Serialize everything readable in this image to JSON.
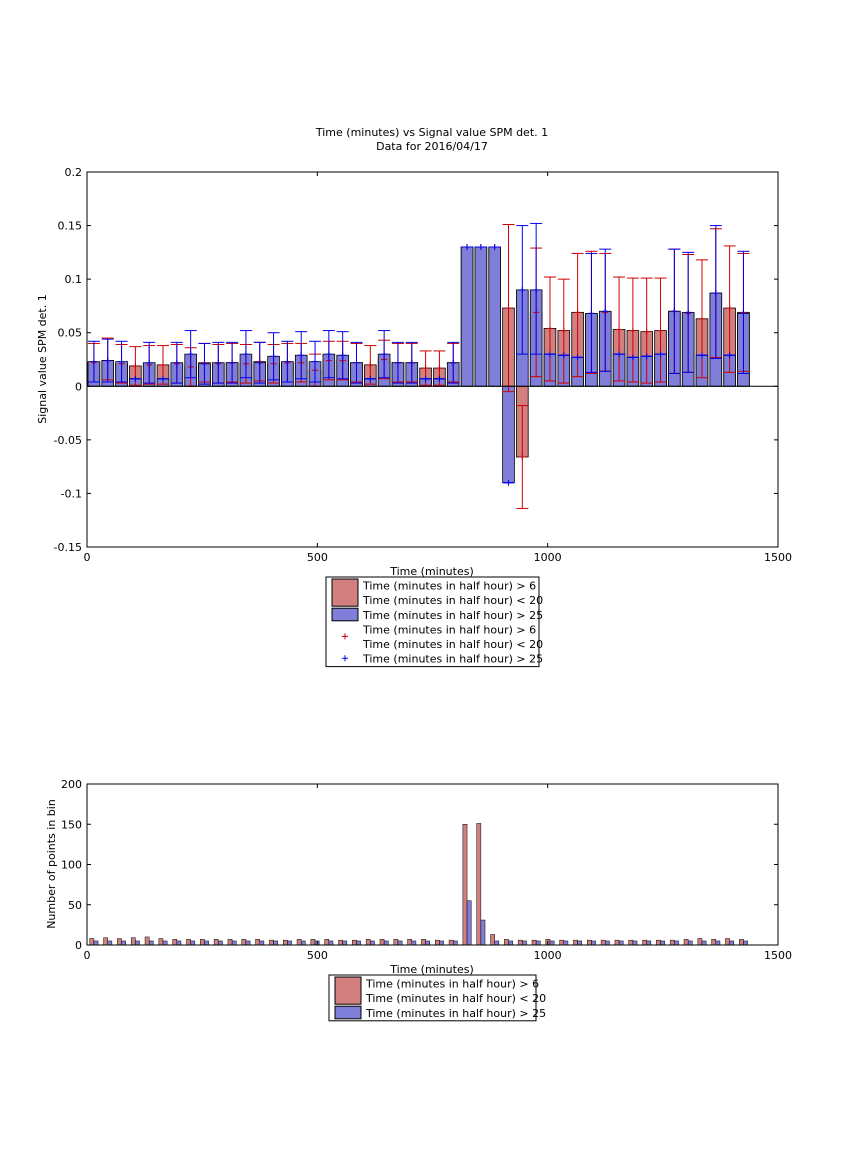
{
  "colors": {
    "red_fill": "#d17f7f",
    "red_line": "#cc0000",
    "blue_fill": "#7f7fd9",
    "blue_line": "#0000ee"
  },
  "chart_data": [
    {
      "type": "bar",
      "title": "Time (minutes) vs Signal value SPM det. 1",
      "subtitle": "Data for 2016/04/17",
      "xlabel": "Time (minutes)",
      "ylabel": "Signal value SPM det. 1",
      "xlim": [
        0,
        1500
      ],
      "ylim": [
        -0.15,
        0.2
      ],
      "xticks": [
        "0",
        "500",
        "1000",
        "1500"
      ],
      "yticks": [
        "-0.15",
        "-0.1",
        "-0.05",
        "0",
        "0.05",
        "0.1",
        "0.15",
        "0.2"
      ],
      "grid": false,
      "legend_position": "below",
      "legend": [
        {
          "label": "Time (minutes in half hour) > 6\nTime (minutes in half hour) < 20",
          "kind": "bar",
          "color": "red"
        },
        {
          "label": "Time (minutes in half hour) > 25",
          "kind": "bar",
          "color": "blue"
        },
        {
          "label": "Time (minutes in half hour) > 6\nTime (minutes in half hour) < 20",
          "kind": "marker",
          "color": "red"
        },
        {
          "label": "Time (minutes in half hour) > 25",
          "kind": "marker",
          "color": "blue"
        }
      ],
      "series": [
        {
          "name": "Time (minutes in half hour) > 6 Time (minutes in half hour) < 20",
          "color": "red",
          "x": [
            15,
            45,
            75,
            105,
            135,
            165,
            195,
            225,
            255,
            285,
            315,
            345,
            375,
            405,
            435,
            465,
            495,
            525,
            555,
            585,
            615,
            645,
            675,
            705,
            735,
            765,
            795,
            825,
            855,
            885,
            915,
            945,
            975,
            1005,
            1035,
            1065,
            1095,
            1125,
            1155,
            1185,
            1215,
            1245,
            1275,
            1305,
            1335,
            1365,
            1395,
            1425
          ],
          "values": [
            0.022,
            0.024,
            0.021,
            0.019,
            0.02,
            0.02,
            0.021,
            0.018,
            0.022,
            0.021,
            0.022,
            0.021,
            0.023,
            0.021,
            0.022,
            0.022,
            0.015,
            0.024,
            0.024,
            0.022,
            0.02,
            0.025,
            0.022,
            0.022,
            0.017,
            0.017,
            0.022,
            0.13,
            0.13,
            0.13,
            0.073,
            -0.066,
            0.069,
            0.054,
            0.052,
            0.069,
            0.068,
            0.069,
            0.053,
            0.052,
            0.051,
            0.052,
            0.07,
            0.068,
            0.063,
            0.087,
            0.073,
            0.069
          ],
          "err_low": [
            0.018,
            0.018,
            0.018,
            0.018,
            0.018,
            0.018,
            0.018,
            0.018,
            0.018,
            0.018,
            0.018,
            0.018,
            0.018,
            0.018,
            0.018,
            0.018,
            0.015,
            0.018,
            0.018,
            0.018,
            0.018,
            0.018,
            0.018,
            0.018,
            0.016,
            0.016,
            0.018,
            0.0,
            0.0,
            0.0,
            0.078,
            0.048,
            0.06,
            0.049,
            0.049,
            0.06,
            0.056,
            0.055,
            0.048,
            0.048,
            0.048,
            0.048,
            0.058,
            0.055,
            0.055,
            0.06,
            0.06,
            0.055
          ],
          "err_high": [
            0.018,
            0.021,
            0.018,
            0.018,
            0.018,
            0.018,
            0.018,
            0.018,
            0.018,
            0.018,
            0.018,
            0.018,
            0.018,
            0.018,
            0.018,
            0.018,
            0.015,
            0.018,
            0.018,
            0.018,
            0.018,
            0.018,
            0.018,
            0.018,
            0.016,
            0.016,
            0.018,
            0.0,
            0.0,
            0.0,
            0.078,
            0.048,
            0.06,
            0.048,
            0.048,
            0.055,
            0.058,
            0.055,
            0.049,
            0.049,
            0.05,
            0.049,
            0.058,
            0.055,
            0.055,
            0.06,
            0.058,
            0.055
          ]
        },
        {
          "name": "Time (minutes in half hour) > 25",
          "color": "blue",
          "x": [
            15,
            45,
            75,
            105,
            135,
            165,
            195,
            225,
            255,
            285,
            315,
            345,
            375,
            405,
            435,
            465,
            495,
            525,
            555,
            585,
            615,
            645,
            675,
            705,
            735,
            765,
            795,
            825,
            855,
            885,
            915,
            945,
            975,
            1005,
            1035,
            1065,
            1095,
            1125,
            1155,
            1185,
            1215,
            1245,
            1275,
            1305,
            1335,
            1365,
            1395,
            1425
          ],
          "values": [
            0.023,
            0.024,
            0.023,
            0.007,
            0.022,
            0.007,
            0.022,
            0.03,
            0.021,
            0.022,
            0.022,
            0.03,
            0.022,
            0.028,
            0.023,
            0.029,
            0.023,
            0.03,
            0.029,
            0.022,
            0.007,
            0.03,
            0.022,
            0.022,
            0.007,
            0.007,
            0.022,
            0.13,
            0.13,
            0.13,
            -0.09,
            0.09,
            0.09,
            0.03,
            0.029,
            0.027,
            0.068,
            0.07,
            0.03,
            0.027,
            0.028,
            0.03,
            0.07,
            0.069,
            0.029,
            0.087,
            0.029,
            0.068
          ],
          "err_low": [
            0.019,
            0.02,
            0.019,
            0.0,
            0.019,
            0.0,
            0.019,
            0.022,
            0.019,
            0.019,
            0.019,
            0.022,
            0.019,
            0.022,
            0.019,
            0.022,
            0.019,
            0.022,
            0.022,
            0.019,
            0.0,
            0.022,
            0.019,
            0.019,
            0.0,
            0.0,
            0.019,
            0.0,
            0.0,
            0.0,
            0.0,
            0.06,
            0.06,
            0.0,
            0.0,
            0.0,
            0.055,
            0.056,
            0.0,
            0.0,
            0.0,
            0.0,
            0.058,
            0.056,
            0.0,
            0.061,
            0.0,
            0.056
          ],
          "err_high": [
            0.019,
            0.02,
            0.019,
            0.0,
            0.019,
            0.0,
            0.019,
            0.022,
            0.019,
            0.019,
            0.019,
            0.022,
            0.019,
            0.022,
            0.019,
            0.022,
            0.019,
            0.022,
            0.022,
            0.019,
            0.0,
            0.022,
            0.019,
            0.019,
            0.0,
            0.0,
            0.019,
            0.0,
            0.0,
            0.0,
            0.0,
            0.06,
            0.062,
            0.0,
            0.0,
            0.0,
            0.056,
            0.058,
            0.0,
            0.0,
            0.0,
            0.0,
            0.058,
            0.056,
            0.0,
            0.063,
            0.0,
            0.058
          ]
        }
      ]
    },
    {
      "type": "bar",
      "xlabel": "Time (minutes)",
      "ylabel": "Number of points in bin",
      "xlim": [
        0,
        1500
      ],
      "ylim": [
        0,
        200
      ],
      "xticks": [
        "0",
        "500",
        "1000",
        "1500"
      ],
      "yticks": [
        "0",
        "50",
        "100",
        "150",
        "200"
      ],
      "grid": false,
      "legend_position": "below",
      "legend": [
        {
          "label": "Time (minutes in half hour) > 6\nTime (minutes in half hour) < 20",
          "kind": "bar",
          "color": "red"
        },
        {
          "label": "Time (minutes in half hour) > 25",
          "kind": "bar",
          "color": "blue"
        }
      ],
      "series": [
        {
          "name": "Time (minutes in half hour) > 6 Time (minutes in half hour) < 20",
          "color": "red",
          "x": [
            15,
            45,
            75,
            105,
            135,
            165,
            195,
            225,
            255,
            285,
            315,
            345,
            375,
            405,
            435,
            465,
            495,
            525,
            555,
            585,
            615,
            645,
            675,
            705,
            735,
            765,
            795,
            825,
            855,
            885,
            915,
            945,
            975,
            1005,
            1035,
            1065,
            1095,
            1125,
            1155,
            1185,
            1215,
            1245,
            1275,
            1305,
            1335,
            1365,
            1395,
            1425
          ],
          "values": [
            8,
            9,
            8,
            9,
            10,
            8,
            7,
            7,
            7,
            7,
            7,
            7,
            7,
            6,
            6,
            7,
            7,
            7,
            6,
            6,
            7,
            7,
            7,
            7,
            7,
            6,
            6,
            150,
            151,
            13,
            7,
            6,
            6,
            7,
            6,
            6,
            6,
            6,
            6,
            6,
            6,
            6,
            6,
            7,
            8,
            7,
            8,
            7
          ]
        },
        {
          "name": "Time (minutes in half hour) > 25",
          "color": "blue",
          "x": [
            15,
            45,
            75,
            105,
            135,
            165,
            195,
            225,
            255,
            285,
            315,
            345,
            375,
            405,
            435,
            465,
            495,
            525,
            555,
            585,
            615,
            645,
            675,
            705,
            735,
            765,
            795,
            825,
            855,
            885,
            915,
            945,
            975,
            1005,
            1035,
            1065,
            1095,
            1125,
            1155,
            1185,
            1215,
            1245,
            1275,
            1305,
            1335,
            1365,
            1395,
            1425
          ],
          "values": [
            5,
            5,
            5,
            5,
            5,
            5,
            5,
            5,
            5,
            5,
            5,
            5,
            5,
            5,
            5,
            5,
            5,
            5,
            5,
            5,
            5,
            5,
            5,
            5,
            5,
            5,
            5,
            55,
            31,
            5,
            5,
            5,
            5,
            5,
            5,
            5,
            5,
            5,
            5,
            5,
            5,
            5,
            5,
            5,
            5,
            5,
            5,
            5
          ]
        }
      ]
    }
  ]
}
